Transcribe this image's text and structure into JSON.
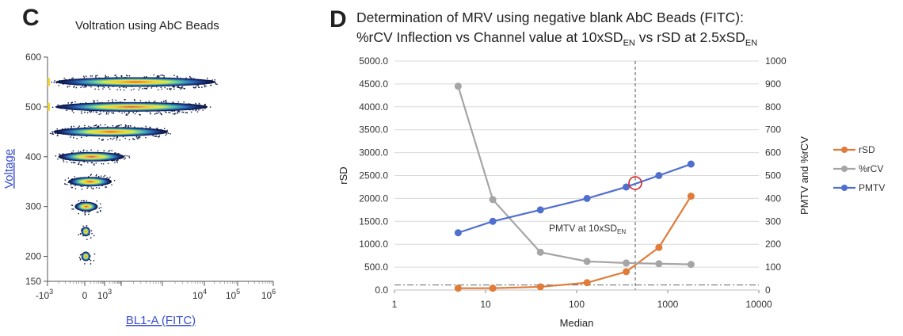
{
  "panels": {
    "left_letter": "C",
    "right_letter": "D"
  },
  "chart_data": [
    {
      "type": "scatter",
      "title": "Voltration using AbC Beads",
      "xlabel": "BL1-A (FITC)",
      "ylabel": "Voltage",
      "xscale": "biexponential",
      "xtick_labels": [
        "-10",
        "0",
        "10",
        "10",
        "10",
        "10"
      ],
      "xtick_exponents": [
        "3",
        "",
        "3",
        "4",
        "5",
        "6"
      ],
      "yticks": [
        150,
        200,
        300,
        400,
        500,
        600
      ],
      "ylim": [
        150,
        600
      ],
      "populations": [
        {
          "voltage": 200,
          "fitc_low": -0.1,
          "fitc_high": 0.25
        },
        {
          "voltage": 250,
          "fitc_low": -0.1,
          "fitc_high": 0.25
        },
        {
          "voltage": 300,
          "fitc_low": -0.3,
          "fitc_high": 0.6
        },
        {
          "voltage": 350,
          "fitc_low": -0.5,
          "fitc_high": 1.3
        },
        {
          "voltage": 400,
          "fitc_low": -0.8,
          "fitc_high": 2.0
        },
        {
          "voltage": 450,
          "fitc_low": -1.0,
          "fitc_high": 3.0
        },
        {
          "voltage": 500,
          "fitc_low": -1.0,
          "fitc_high": 3.9
        },
        {
          "voltage": 550,
          "fitc_low": -1.0,
          "fitc_high": 4.1
        }
      ]
    },
    {
      "type": "line",
      "title_line1": "Determination of MRV using negative blank AbC Beads (FITC):",
      "title_line2_parts": [
        "%rCV Inflection vs Channel value at 10xSD",
        "EN",
        " vs rSD at 2.5xSD",
        "EN"
      ],
      "xlabel": "Median",
      "ylabel_left": "rSD",
      "ylabel_right": "PMTV and %rCV",
      "xscale": "log",
      "xlim": [
        1,
        10000
      ],
      "xtick_labels": [
        "1",
        "10",
        "100",
        "1000",
        "10000"
      ],
      "ylim_left": [
        0,
        5000
      ],
      "yticks_left": [
        "0.0",
        "500.0",
        "1000.0",
        "1500.0",
        "2000.0",
        "2500.0",
        "3000.0",
        "3500.0",
        "4000.0",
        "4500.0",
        "5000.0"
      ],
      "ylim_right": [
        0,
        1000
      ],
      "yticks_right": [
        "0",
        "100",
        "200",
        "300",
        "400",
        "500",
        "600",
        "700",
        "800",
        "900",
        "1000"
      ],
      "x": [
        5,
        12,
        40,
        130,
        350,
        800,
        1800
      ],
      "series": [
        {
          "name": "rSD",
          "axis": "left",
          "color": "#e07b39",
          "values": [
            40,
            40,
            70,
            160,
            400,
            930,
            2050
          ]
        },
        {
          "name": "%rCV",
          "axis": "right",
          "color": "#a5a5a5",
          "values": [
            890,
            395,
            165,
            125,
            118,
            115,
            112
          ]
        },
        {
          "name": "PMTV",
          "axis": "right",
          "color": "#4f6fcf",
          "values": [
            250,
            300,
            350,
            400,
            450,
            500,
            550
          ]
        }
      ],
      "vline_x": 440,
      "hline_right": 22,
      "annotation": {
        "text": "PMTV at 10xSD",
        "sub": "EN",
        "marker_x": 440,
        "marker_y_right": 467
      },
      "legend_position": "right"
    }
  ]
}
